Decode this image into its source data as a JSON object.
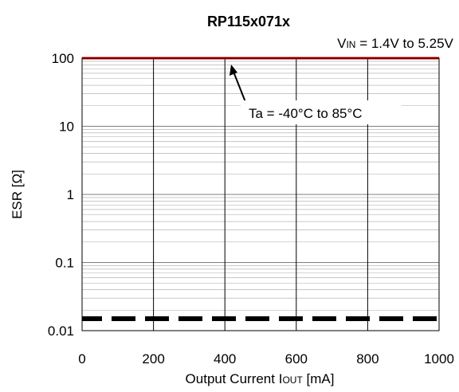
{
  "chart_data": {
    "type": "line",
    "title": "RP115x071x",
    "condition": {
      "prefix": "V",
      "sub": "IN",
      "text": " = 1.4V  to 5.25V"
    },
    "xlabel": {
      "prefix": "Output Current  I",
      "sub": "OUT",
      "suffix": " [mA]"
    },
    "ylabel": "ESR [Ω]",
    "x_scale": "linear",
    "y_scale": "log",
    "xlim": [
      0,
      1000
    ],
    "ylim": [
      0.01,
      100
    ],
    "x_ticks": [
      "0",
      "200",
      "400",
      "600",
      "800",
      "1000"
    ],
    "y_ticks": [
      "0.01",
      "0.1",
      "1",
      "10",
      "100"
    ],
    "grid": true,
    "series": [
      {
        "style": "solid",
        "color": "#e00000",
        "x": [
          0,
          1000
        ],
        "y": [
          100,
          100
        ]
      },
      {
        "style": "dashed",
        "color": "#000000",
        "x": [
          0,
          1000
        ],
        "y": [
          0.015,
          0.015
        ]
      }
    ],
    "annotation": {
      "text": "Ta = -40°C to 85°C",
      "arrow_to": [
        400,
        100
      ]
    }
  }
}
